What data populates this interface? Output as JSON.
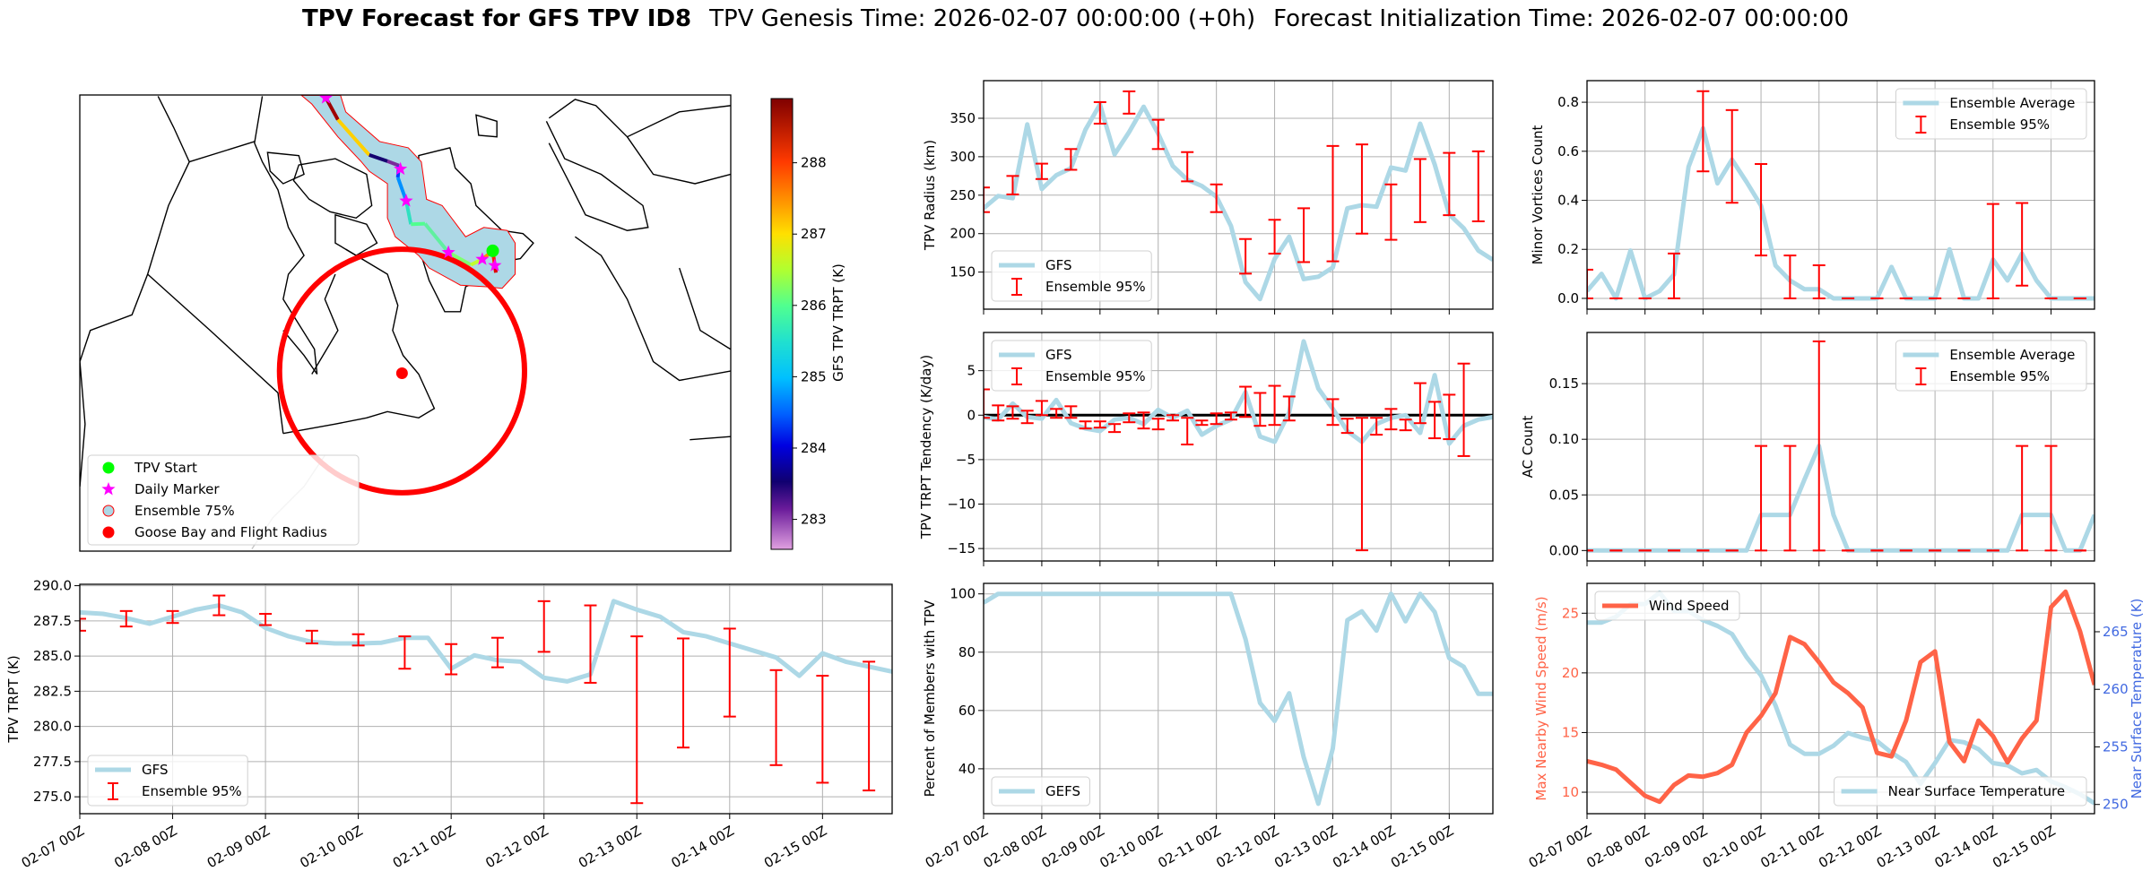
{
  "title": {
    "main": "TPV Forecast for GFS TPV ID8",
    "genesis": "TPV Genesis Time: 2026-02-07 00:00:00 (+0h)",
    "init": "Forecast Initialization Time: 2026-02-07 00:00:00"
  },
  "colors": {
    "gfs_line": "#add8e6",
    "error_bar": "#ff0000",
    "wind": "#ff6347",
    "temp_axis": "#4169e1",
    "zero_line": "#000000",
    "grid": "#b0b0b0"
  },
  "map": {
    "legend": [
      "TPV Start",
      "Daily Marker",
      "Ensemble 75%",
      "Goose Bay and Flight Radius"
    ],
    "colorbar": {
      "label": "GFS TPV TRPT (K)",
      "ticks": [
        "283",
        "284",
        "285",
        "286",
        "287",
        "288"
      ],
      "range": [
        282.58,
        288.9
      ]
    }
  },
  "chart_data": [
    {
      "id": "trpt",
      "type": "line",
      "ylabel": "TPV TRPT (K)",
      "ylim": [
        273.8,
        290.1
      ],
      "yticks": [
        "275.0",
        "277.5",
        "280.0",
        "282.5",
        "285.0",
        "287.5",
        "290.0"
      ],
      "show_xticklabels": true,
      "legend": [
        {
          "label": "GFS",
          "kind": "line"
        },
        {
          "label": "Ensemble 95%",
          "kind": "err"
        }
      ],
      "legend_loc": "lower left",
      "series": [
        {
          "name": "GFS",
          "values": [
            288.1,
            288.0,
            287.7,
            287.3,
            287.8,
            288.3,
            288.6,
            288.1,
            287.0,
            286.4,
            286.0,
            285.9,
            285.9,
            285.95,
            286.3,
            286.3,
            284.1,
            285.05,
            284.7,
            284.6,
            283.45,
            283.2,
            283.7,
            288.9,
            288.3,
            287.8,
            286.7,
            286.4,
            285.9,
            285.4,
            284.9,
            283.6,
            285.2,
            284.6,
            284.25,
            283.9
          ]
        }
      ],
      "errorbars": {
        "index": [
          0,
          2,
          4,
          6,
          8,
          10,
          12,
          14,
          16,
          18,
          20,
          22,
          24,
          26,
          28,
          30,
          32,
          34
        ],
        "low": [
          286.8,
          287.1,
          287.35,
          287.9,
          287.2,
          285.9,
          285.75,
          284.1,
          283.7,
          284.2,
          285.3,
          283.1,
          274.55,
          278.5,
          280.7,
          277.25,
          276.0,
          275.45
        ],
        "high": [
          287.65,
          288.2,
          288.2,
          289.3,
          288.0,
          286.8,
          286.55,
          286.4,
          285.85,
          286.3,
          288.9,
          288.6,
          286.4,
          286.25,
          286.95,
          284.0,
          283.6,
          284.6
        ]
      }
    },
    {
      "id": "radius",
      "type": "line",
      "ylabel": "TPV Radius (km)",
      "ylim": [
        101.8,
        398.9
      ],
      "yticks": [
        "150",
        "200",
        "250",
        "300",
        "350"
      ],
      "show_xticklabels": false,
      "legend": [
        {
          "label": "GFS",
          "kind": "line"
        },
        {
          "label": "Ensemble 95%",
          "kind": "err"
        }
      ],
      "legend_loc": "lower left",
      "series": [
        {
          "name": "GFS",
          "values": [
            233,
            249,
            246,
            342,
            258,
            276,
            285,
            335,
            368,
            303,
            332,
            365,
            330,
            288,
            270,
            262,
            248,
            210,
            137,
            115,
            167,
            196,
            141,
            144,
            156,
            233,
            237,
            235,
            286,
            282,
            343,
            290,
            225,
            207,
            178,
            166
          ]
        }
      ],
      "errorbars": {
        "index": [
          0,
          2,
          4,
          6,
          8,
          10,
          12,
          14,
          16,
          18,
          20,
          22,
          24,
          26,
          28,
          30,
          32,
          34
        ],
        "low": [
          228,
          251,
          271,
          283,
          343,
          356,
          310,
          268,
          228,
          148,
          174,
          163,
          164,
          200,
          192,
          215,
          224,
          216
        ],
        "high": [
          260,
          275,
          291,
          310,
          371,
          385,
          348,
          306,
          264,
          193,
          218,
          233,
          314,
          316,
          264,
          297,
          305,
          307
        ]
      }
    },
    {
      "id": "tendency",
      "type": "line",
      "ylabel": "TPV TRPT Tendency (K/day)",
      "ylim": [
        -16.4,
        9.3
      ],
      "hline": 0,
      "yticks": [
        "−15",
        "−10",
        "−5",
        "0",
        "5"
      ],
      "show_xticklabels": false,
      "legend": [
        {
          "label": "GFS",
          "kind": "line"
        },
        {
          "label": "Ensemble 95%",
          "kind": "err"
        }
      ],
      "legend_loc": "upper left",
      "series": [
        {
          "name": "GFS",
          "values": [
            -0.2,
            -0.5,
            1.3,
            -0.2,
            -0.4,
            1.7,
            -0.9,
            -1.5,
            -1.8,
            -0.5,
            -0.3,
            -1.0,
            0.6,
            -0.3,
            0.5,
            -2.2,
            -1.2,
            -0.5,
            2.6,
            -2.4,
            -3.0,
            0.3,
            8.3,
            3.0,
            0.7,
            -1.8,
            -3.0,
            -1.0,
            -0.3,
            0.0,
            -2.0,
            4.5,
            -3.2,
            -1.2,
            -0.5,
            -0.2
          ]
        }
      ],
      "errorbars": {
        "index": [
          0,
          1,
          2,
          3,
          4,
          5,
          6,
          7,
          8,
          9,
          10,
          11,
          12,
          13,
          14,
          15,
          16,
          17,
          18,
          19,
          20,
          21,
          24,
          25,
          26,
          27,
          28,
          29,
          30,
          31,
          32,
          33
        ],
        "low": [
          -0.3,
          -0.6,
          -0.4,
          -0.9,
          0,
          -0.3,
          -0.3,
          -1.5,
          -1.4,
          -1.9,
          -0.8,
          -1.5,
          -1.6,
          -0.6,
          -3.3,
          -1.1,
          -1.0,
          -0.5,
          -0.2,
          -1.2,
          -1.1,
          -0.6,
          -1.1,
          -2.0,
          -15.2,
          -2.2,
          -1.6,
          -1.7,
          -0.9,
          -2.6,
          -2.7,
          -4.6
        ],
        "high": [
          2.9,
          1.1,
          1.0,
          0.5,
          1.6,
          0.7,
          1.0,
          -0.7,
          -0.7,
          -1.0,
          0.2,
          0.3,
          -0.4,
          0,
          -0.3,
          -0.6,
          0.2,
          0.3,
          3.2,
          2.5,
          3.3,
          2.1,
          1.8,
          -0.4,
          -0.3,
          -0.3,
          0.7,
          -0.5,
          3.6,
          1.5,
          2.3,
          5.8
        ]
      }
    },
    {
      "id": "percent",
      "type": "line",
      "ylabel": "Percent of Members with TPV",
      "ylim": [
        24.6,
        103.6
      ],
      "yticks": [
        "40",
        "60",
        "80",
        "100"
      ],
      "show_xticklabels": true,
      "legend": [
        {
          "label": "GEFS",
          "kind": "line"
        }
      ],
      "legend_loc": "lower left",
      "series": [
        {
          "name": "GEFS",
          "values": [
            97,
            100,
            100,
            100,
            100,
            100,
            100,
            100,
            100,
            100,
            100,
            100,
            100,
            100,
            100,
            100,
            100,
            100,
            84.5,
            62.6,
            56.4,
            65.9,
            44,
            28,
            47,
            91,
            94,
            87.4,
            100,
            90.6,
            100,
            93.8,
            78,
            75,
            65.7,
            65.7
          ]
        }
      ]
    },
    {
      "id": "minor",
      "type": "line",
      "ylabel": "Minor Vortices Count",
      "ylim": [
        -0.044,
        0.888
      ],
      "yticks": [
        "0.0",
        "0.2",
        "0.4",
        "0.6",
        "0.8"
      ],
      "show_xticklabels": false,
      "legend": [
        {
          "label": "Ensemble Average",
          "kind": "line"
        },
        {
          "label": "Ensemble 95%",
          "kind": "err"
        }
      ],
      "legend_loc": "upper right",
      "series": [
        {
          "name": "Ensemble Average",
          "values": [
            0.03,
            0.1,
            0,
            0.195,
            0,
            0.03,
            0.097,
            0.536,
            0.694,
            0.469,
            0.566,
            0.475,
            0.378,
            0.134,
            0.073,
            0.037,
            0.037,
            0,
            0,
            0,
            0,
            0.128,
            0,
            0,
            0,
            0.2,
            0,
            0,
            0.158,
            0.073,
            0.183,
            0.073,
            0,
            0,
            0,
            0
          ]
        }
      ],
      "errorbars": {
        "index": [
          0,
          2,
          4,
          6,
          8,
          10,
          12,
          14,
          16,
          18,
          20,
          22,
          24,
          26,
          28,
          30,
          32,
          34
        ],
        "low": [
          0,
          0,
          0,
          0,
          0.518,
          0.39,
          0.175,
          0,
          0,
          0,
          0,
          0,
          0,
          0,
          0,
          0.052,
          0,
          0
        ],
        "high": [
          0.117,
          0,
          0,
          0.183,
          0.845,
          0.768,
          0.548,
          0.175,
          0.135,
          0,
          0,
          0,
          0,
          0,
          0.385,
          0.389,
          0,
          0
        ]
      }
    },
    {
      "id": "ac",
      "type": "line",
      "ylabel": "AC Count",
      "ylim": [
        -0.0094,
        0.196
      ],
      "yticks": [
        "0.00",
        "0.05",
        "0.10",
        "0.15"
      ],
      "show_xticklabels": false,
      "legend": [
        {
          "label": "Ensemble Average",
          "kind": "line"
        },
        {
          "label": "Ensemble 95%",
          "kind": "err"
        }
      ],
      "legend_loc": "upper right",
      "series": [
        {
          "name": "Ensemble Average",
          "values": [
            0,
            0,
            0,
            0,
            0,
            0,
            0,
            0,
            0,
            0,
            0,
            0,
            0.032,
            0.032,
            0.032,
            0.064,
            0.094,
            0.032,
            0,
            0,
            0,
            0,
            0,
            0,
            0,
            0,
            0,
            0,
            0,
            0,
            0.032,
            0.032,
            0.032,
            0,
            0,
            0.032
          ]
        }
      ],
      "errorbars": {
        "index": [
          0,
          2,
          4,
          6,
          8,
          10,
          12,
          14,
          16,
          18,
          20,
          22,
          24,
          26,
          28,
          30,
          32,
          34
        ],
        "low": [
          0,
          0,
          0,
          0,
          0,
          0,
          0,
          0,
          0,
          0,
          0,
          0,
          0,
          0,
          0,
          0,
          0,
          0
        ],
        "high": [
          0,
          0,
          0,
          0,
          0,
          0,
          0.094,
          0.094,
          0.188,
          0,
          0,
          0,
          0,
          0,
          0,
          0.094,
          0.094,
          0
        ]
      }
    },
    {
      "id": "wind",
      "type": "line",
      "ylabel": "Max Nearby Wind Speed (m/s)",
      "ylim": [
        8.2,
        27.5
      ],
      "yticks": [
        "10",
        "15",
        "20",
        "25"
      ],
      "show_xticklabels": true,
      "legend": [
        {
          "label": "Wind Speed",
          "kind": "wind"
        }
      ],
      "legend_loc": "upper left",
      "series": [
        {
          "name": "Wind Speed",
          "values": [
            12.6,
            12.3,
            11.9,
            10.8,
            9.7,
            9.2,
            10.6,
            11.4,
            11.3,
            11.6,
            12.3,
            15.0,
            16.4,
            18.3,
            23.0,
            22.4,
            20.9,
            19.2,
            18.3,
            17.1,
            13.3,
            13.0,
            16.0,
            20.9,
            21.8,
            14.2,
            12.6,
            16.0,
            14.7,
            12.5,
            14.5,
            16.0,
            25.5,
            26.8,
            23.5,
            19.0
          ]
        }
      ],
      "secondary": {
        "ylabel": "Near Surface Temperature (K)",
        "ylim": [
          249.2,
          269.2
        ],
        "yticks": [
          "250",
          "255",
          "260",
          "265"
        ],
        "legend": [
          {
            "label": "Near Surface Temperature",
            "kind": "line"
          }
        ],
        "legend_loc": "lower right",
        "series": [
          {
            "name": "Near Surface Temperature",
            "values": [
              265.8,
              265.8,
              266.3,
              267.4,
              267.4,
              268.4,
              266.8,
              266.8,
              266.0,
              265.5,
              264.8,
              262.8,
              261.2,
              258.6,
              255.2,
              254.4,
              254.4,
              255.1,
              256.2,
              255.8,
              255.5,
              254.5,
              253.7,
              251.8,
              253.6,
              255.6,
              255.4,
              254.8,
              253.6,
              253.4,
              252.7,
              253.0,
              252.0,
              251.5,
              250.9,
              250.1
            ]
          }
        ]
      }
    }
  ],
  "x_hours": [
    0,
    6,
    12,
    18,
    24,
    30,
    36,
    42,
    48,
    54,
    60,
    66,
    72,
    78,
    84,
    90,
    96,
    102,
    108,
    114,
    120,
    126,
    132,
    138,
    144,
    150,
    156,
    162,
    168,
    174,
    180,
    186,
    192,
    198,
    204,
    210
  ],
  "x_tick_labels": [
    "02-07 00Z",
    "02-08 00Z",
    "02-09 00Z",
    "02-10 00Z",
    "02-11 00Z",
    "02-12 00Z",
    "02-13 00Z",
    "02-14 00Z",
    "02-15 00Z"
  ]
}
